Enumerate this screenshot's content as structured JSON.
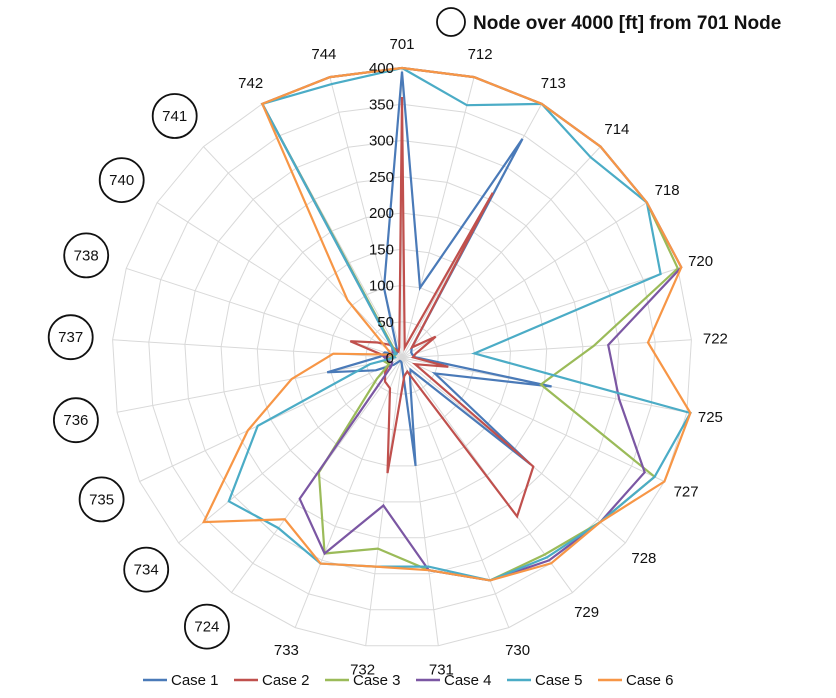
{
  "chart_data": {
    "type": "radar",
    "title": "",
    "rlim": [
      0,
      400
    ],
    "rticks": [
      0,
      50,
      100,
      150,
      200,
      250,
      300,
      350,
      400
    ],
    "grid": true,
    "legend_position": "bottom",
    "annotation": "Node over 4000 [ft] from 701 Node",
    "categories": [
      "701",
      "712",
      "713",
      "714",
      "718",
      "720",
      "722",
      "725",
      "727",
      "728",
      "729",
      "730",
      "731",
      "732",
      "733",
      "724",
      "734",
      "735",
      "736",
      "737",
      "738",
      "740",
      "741",
      "742",
      "744"
    ],
    "circled_categories": [
      "724",
      "734",
      "735",
      "736",
      "737",
      "738",
      "740",
      "741"
    ],
    "series": [
      {
        "name": "Case 1",
        "color": "#4a7ab8",
        "values": [
          395,
          100,
          345,
          20,
          15,
          15,
          18,
          210,
          50,
          230,
          20,
          30,
          150,
          6,
          5,
          5,
          15,
          40,
          105,
          30,
          25,
          10,
          10,
          15,
          100
        ]
      },
      {
        "name": "Case 2",
        "color": "#c0504d",
        "values": [
          360,
          15,
          260,
          20,
          55,
          20,
          15,
          65,
          20,
          235,
          270,
          20,
          25,
          160,
          45,
          40,
          30,
          20,
          20,
          20,
          75,
          40,
          25,
          10,
          15
        ]
      },
      {
        "name": "Case 3",
        "color": "#9bbb59",
        "values": [
          400,
          400,
          400,
          400,
          400,
          400,
          265,
          195,
          385,
          355,
          335,
          330,
          295,
          265,
          290,
          195,
          45,
          20,
          25,
          15,
          10,
          10,
          15,
          400,
          400
        ]
      },
      {
        "name": "Case 4",
        "color": "#7b57a3",
        "values": [
          400,
          400,
          400,
          400,
          400,
          405,
          285,
          305,
          370,
          355,
          345,
          330,
          295,
          205,
          290,
          240,
          20,
          15,
          20,
          25,
          15,
          15,
          20,
          400,
          400
        ]
      },
      {
        "name": "Case 5",
        "color": "#4bacc6",
        "values": [
          400,
          360,
          400,
          380,
          400,
          375,
          100,
          405,
          385,
          355,
          340,
          330,
          290,
          290,
          305,
          290,
          310,
          220,
          45,
          10,
          15,
          10,
          20,
          400,
          390
        ]
      },
      {
        "name": "Case 6",
        "color": "#f79646",
        "values": [
          400,
          400,
          400,
          400,
          400,
          405,
          340,
          405,
          400,
          355,
          350,
          330,
          295,
          290,
          305,
          275,
          355,
          235,
          155,
          95,
          15,
          25,
          110,
          400,
          400
        ]
      }
    ]
  }
}
